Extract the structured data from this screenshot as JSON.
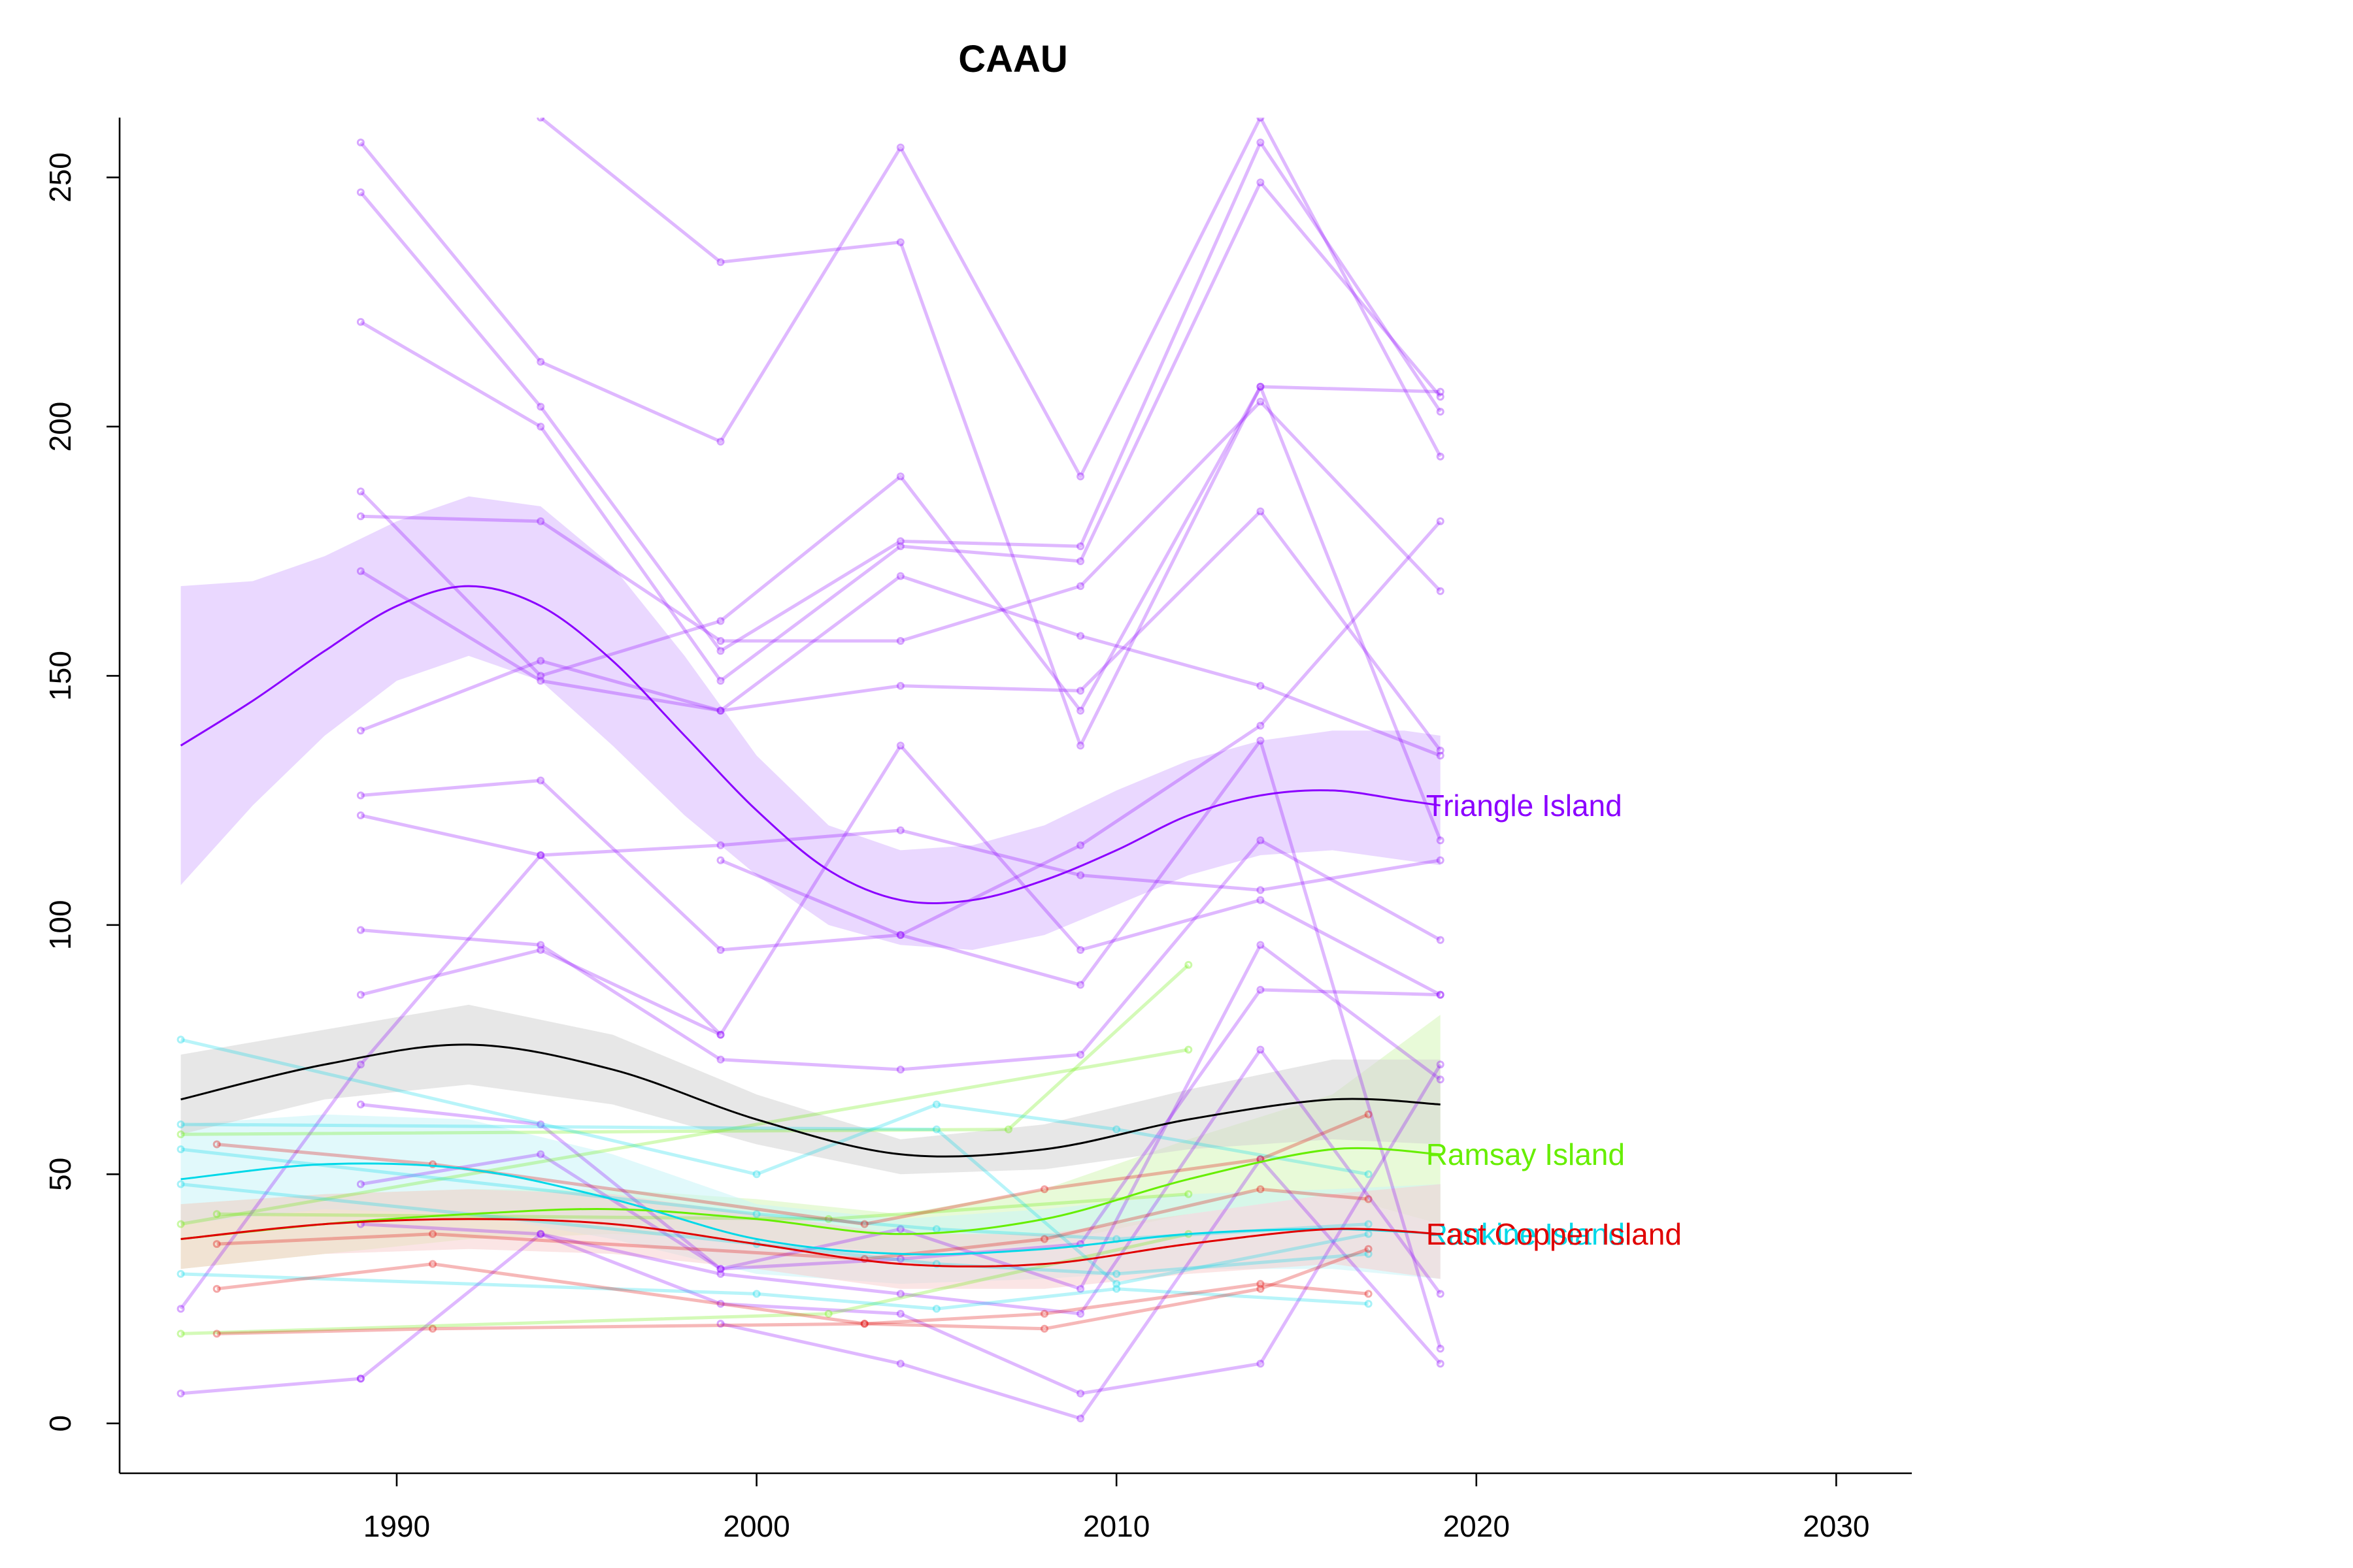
{
  "chart_data": {
    "type": "line",
    "title": "CAAU",
    "xlabel": "",
    "ylabel": "",
    "xlim": [
      1982.3,
      2032.1
    ],
    "ylim": [
      -10,
      262
    ],
    "x_ticks": [
      1990,
      2000,
      2010,
      2020,
      2030
    ],
    "y_ticks": [
      0,
      50,
      100,
      150,
      200,
      250
    ],
    "grid": false,
    "legend": "none",
    "series": [
      {
        "name": "Triangle Island",
        "color": "#8B00FF",
        "band_color": "#d8b8ff",
        "trend": {
          "x": [
            1984,
            1986,
            1988,
            1990,
            1992,
            1994,
            1996,
            1998,
            2000,
            2002,
            2004,
            2006,
            2008,
            2010,
            2012,
            2014,
            2016,
            2018,
            2019
          ],
          "y": [
            136,
            145,
            155,
            164,
            168,
            164,
            153,
            138,
            123,
            111,
            105,
            105,
            109,
            115,
            122,
            126,
            127,
            125,
            124
          ],
          "upper": [
            168,
            169,
            174,
            181,
            186,
            184,
            172,
            154,
            134,
            120,
            115,
            116,
            120,
            127,
            133,
            137,
            139,
            139,
            138
          ],
          "lower": [
            108,
            124,
            138,
            149,
            154,
            149,
            136,
            122,
            110,
            100,
            96,
            95,
            98,
            104,
            110,
            114,
            115,
            113,
            112
          ]
        },
        "sites": [
          {
            "x": [
              1989,
              1994,
              1999,
              2004,
              2009,
              2014,
              2019
            ],
            "y": [
              257,
              213,
              197,
              256,
              190,
              262,
              194
            ]
          },
          {
            "x": [
              1989,
              1994,
              1999,
              2004,
              2009,
              2014,
              2019
            ],
            "y": [
              247,
              204,
              155,
              177,
              176,
              257,
              203
            ]
          },
          {
            "x": [
              1989,
              1994,
              1999,
              2004,
              2009,
              2014,
              2019
            ],
            "y": [
              221,
              200,
              149,
              176,
              173,
              249,
              206
            ]
          },
          {
            "x": [
              1989,
              1994,
              1999,
              2004,
              2009,
              2014,
              2019
            ],
            "y": [
              187,
              150,
              161,
              190,
              143,
              208,
              207
            ]
          },
          {
            "x": [
              1989,
              1994,
              1999,
              2004,
              2009,
              2014,
              2019
            ],
            "y": [
              182,
              181,
              157,
              157,
              168,
              205,
              167
            ]
          },
          {
            "x": [
              1989,
              1994,
              1999,
              2004,
              2009,
              2014,
              2019
            ],
            "y": [
              171,
              149,
              143,
              148,
              147,
              183,
              135
            ]
          },
          {
            "x": [
              1989,
              1994,
              1999,
              2004,
              2009,
              2014,
              2019
            ],
            "y": [
              139,
              153,
              143,
              170,
              158,
              148,
              134
            ]
          },
          {
            "x": [
              1989,
              1994,
              1999,
              2004,
              2009,
              2014,
              2019
            ],
            "y": [
              126,
              129,
              95,
              98,
              116,
              140,
              181
            ]
          },
          {
            "x": [
              1989,
              1994,
              1999,
              2004,
              2009,
              2014,
              2019
            ],
            "y": [
              122,
              114,
              116,
              119,
              110,
              107,
              113
            ]
          },
          {
            "x": [
              1989,
              1994,
              1999,
              2004,
              2009,
              2014,
              2019
            ],
            "y": [
              99,
              96,
              73,
              71,
              74,
              117,
              97
            ]
          },
          {
            "x": [
              1989,
              1994,
              1999,
              2004,
              2009,
              2014,
              2019
            ],
            "y": [
              86,
              95,
              78,
              136,
              95,
              105,
              86
            ]
          },
          {
            "x": [
              1989,
              1994,
              1999,
              2004,
              2009,
              2014,
              2019
            ],
            "y": [
              64,
              60,
              31,
              39,
              27,
              96,
              69
            ]
          },
          {
            "x": [
              1989,
              1994,
              1999,
              2004,
              2009,
              2014,
              2019
            ],
            "y": [
              48,
              54,
              31,
              33,
              36,
              87,
              86
            ]
          },
          {
            "x": [
              1989,
              1994,
              1999,
              2004,
              2009,
              2014,
              2019
            ],
            "y": [
              40,
              38,
              30,
              26,
              22,
              75,
              26
            ]
          },
          {
            "x": [
              1989,
              1994,
              1999,
              2004,
              2009,
              2014,
              2019
            ],
            "y": [
              9,
              38,
              24,
              22,
              6,
              12,
              72
            ]
          },
          {
            "x": [
              1984,
              1989
            ],
            "y": [
              6,
              9
            ]
          },
          {
            "x": [
              1994,
              1999,
              2004,
              2009,
              2014,
              2019
            ],
            "y": [
              262,
              233,
              237,
              136,
              208,
              117
            ]
          },
          {
            "x": [
              1999,
              2004,
              2009,
              2014,
              2019
            ],
            "y": [
              113,
              98,
              88,
              137,
              15
            ]
          },
          {
            "x": [
              1999,
              2004,
              2009,
              2014,
              2019
            ],
            "y": [
              20,
              12,
              1,
              53,
              12
            ]
          },
          {
            "x": [
              1984,
              1989,
              1994,
              1999
            ],
            "y": [
              23,
              72,
              114,
              78
            ]
          }
        ]
      },
      {
        "name": "Ramsay Island",
        "color": "#66EE00",
        "band_color": "#d6f5b8",
        "trend": {
          "x": [
            1984,
            1988,
            1992,
            1996,
            2000,
            2004,
            2008,
            2012,
            2016,
            2019
          ],
          "y": [
            37,
            40,
            42,
            43,
            41,
            38,
            41,
            49,
            55,
            54
          ],
          "upper": [
            44,
            46,
            47,
            47,
            45,
            42,
            47,
            57,
            66,
            82
          ],
          "lower": [
            31,
            34,
            37,
            38,
            37,
            34,
            36,
            42,
            46,
            40
          ]
        },
        "sites": [
          {
            "x": [
              1984,
              2007,
              2012
            ],
            "y": [
              58,
              59,
              92
            ]
          },
          {
            "x": [
              1984,
              2012
            ],
            "y": [
              40,
              75
            ]
          },
          {
            "x": [
              1984,
              2002,
              2012
            ],
            "y": [
              18,
              22,
              38
            ]
          },
          {
            "x": [
              1985,
              2002,
              2012
            ],
            "y": [
              42,
              41,
              46
            ]
          }
        ]
      },
      {
        "name": "Rankine Island",
        "color": "#00D8E8",
        "band_color": "#c8f4f8",
        "trend": {
          "x": [
            1984,
            1988,
            1992,
            1996,
            2000,
            2004,
            2008,
            2012,
            2016,
            2019
          ],
          "y": [
            49,
            52,
            51,
            45,
            37,
            34,
            35,
            38,
            39,
            38
          ],
          "upper": [
            60,
            62,
            61,
            54,
            44,
            41,
            43,
            46,
            47,
            48
          ],
          "lower": [
            40,
            43,
            42,
            37,
            30,
            28,
            29,
            31,
            31,
            29
          ]
        },
        "sites": [
          {
            "x": [
              1984,
              2000,
              2005,
              2010,
              2017
            ],
            "y": [
              77,
              50,
              64,
              59,
              50
            ]
          },
          {
            "x": [
              1984,
              2005,
              2010,
              2017
            ],
            "y": [
              60,
              59,
              28,
              38
            ]
          },
          {
            "x": [
              1984,
              2000,
              2005,
              2010,
              2017
            ],
            "y": [
              55,
              42,
              39,
              37,
              40
            ]
          },
          {
            "x": [
              1984,
              2000,
              2005,
              2010,
              2017
            ],
            "y": [
              48,
              36,
              32,
              30,
              34
            ]
          },
          {
            "x": [
              1984,
              2000,
              2005,
              2010,
              2017
            ],
            "y": [
              30,
              26,
              23,
              27,
              24
            ]
          }
        ]
      },
      {
        "name": "East Copper Island",
        "color": "#E00000",
        "band_color": "#f8d0d0",
        "trend": {
          "x": [
            1984,
            1988,
            1992,
            1996,
            2000,
            2004,
            2008,
            2012,
            2016,
            2019
          ],
          "y": [
            37,
            40,
            41,
            40,
            36,
            32,
            32,
            36,
            39,
            38
          ],
          "upper": [
            44,
            46,
            47,
            46,
            42,
            38,
            38,
            42,
            46,
            48
          ],
          "lower": [
            31,
            34,
            35,
            34,
            31,
            27,
            27,
            30,
            32,
            29
          ]
        },
        "sites": [
          {
            "x": [
              1985,
              1991,
              2003,
              2008,
              2014,
              2017
            ],
            "y": [
              56,
              52,
              40,
              47,
              53,
              62
            ]
          },
          {
            "x": [
              1985,
              1991,
              2003,
              2008,
              2014,
              2017
            ],
            "y": [
              36,
              38,
              33,
              37,
              47,
              45
            ]
          },
          {
            "x": [
              1985,
              1991,
              2003,
              2008,
              2014,
              2017
            ],
            "y": [
              27,
              32,
              20,
              22,
              28,
              26
            ]
          },
          {
            "x": [
              1985,
              1991,
              2003,
              2008,
              2014,
              2017
            ],
            "y": [
              18,
              19,
              20,
              19,
              27,
              35
            ]
          }
        ]
      },
      {
        "name": "",
        "color": "#000000",
        "band_color": "#d3d3d3",
        "trend": {
          "x": [
            1984,
            1988,
            1992,
            1996,
            2000,
            2004,
            2008,
            2012,
            2016,
            2019
          ],
          "y": [
            65,
            72,
            76,
            71,
            61,
            54,
            55,
            61,
            65,
            64
          ],
          "upper": [
            74,
            79,
            84,
            78,
            66,
            57,
            60,
            67,
            73,
            73
          ],
          "lower": [
            58,
            65,
            68,
            64,
            56,
            50,
            51,
            55,
            57,
            56
          ]
        },
        "sites": []
      }
    ]
  }
}
